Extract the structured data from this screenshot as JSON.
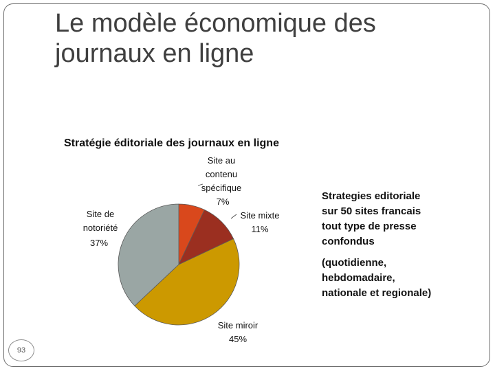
{
  "slide": {
    "title_line1": "Le modèle économique des",
    "title_line2": "journaux en ligne",
    "side_text_1": [
      "Strategies editoriale",
      "sur 50 sites francais",
      "tout type de presse",
      "confondus"
    ],
    "side_text_2": [
      "(quotidienne,",
      "hebdomadaire,",
      "nationale et regionale)"
    ],
    "page_number": "93"
  },
  "chart_data": {
    "type": "pie",
    "title": "Stratégie éditoriale des journaux en ligne",
    "slices": [
      {
        "name": "Site au contenu spécifique",
        "label_lines": [
          "Site au",
          "contenu",
          "spécifique"
        ],
        "percent_label": "7%",
        "value": 7,
        "color": "#d9481c"
      },
      {
        "name": "Site mixte",
        "label_lines": [
          "Site mixte"
        ],
        "percent_label": "11%",
        "value": 11,
        "color": "#9b2f20"
      },
      {
        "name": "Site miroir",
        "label_lines": [
          "Site miroir"
        ],
        "percent_label": "45%",
        "value": 45,
        "color": "#cc9900"
      },
      {
        "name": "Site de notoriété",
        "label_lines": [
          "Site de",
          "notoriété"
        ],
        "percent_label": "37%",
        "value": 37,
        "color": "#9aa6a4"
      }
    ]
  }
}
